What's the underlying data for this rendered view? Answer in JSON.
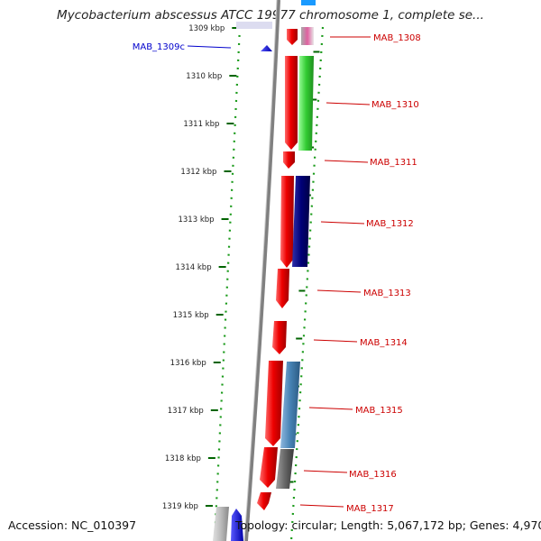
{
  "title": "Mycobacterium abscessus ATCC 19977 chromosome 1, complete se...",
  "footer": {
    "accession": "Accession: NC_010397",
    "topology": "Topology: circular; Length: 5,067,172 bp; Genes: 4,970"
  },
  "colors": {
    "backbone": "#808080",
    "forward_gene": "#e80000",
    "reverse_label": "#0000cc",
    "label_line": "#cc0000",
    "tick": "#006400",
    "dot_ring": "#1a9a1a"
  },
  "ticks": [
    {
      "label": "1309 kbp"
    },
    {
      "label": "1310 kbp"
    },
    {
      "label": "1311 kbp"
    },
    {
      "label": "1312 kbp"
    },
    {
      "label": "1313 kbp"
    },
    {
      "label": "1314 kbp"
    },
    {
      "label": "1315 kbp"
    },
    {
      "label": "1316 kbp"
    },
    {
      "label": "1317 kbp"
    },
    {
      "label": "1318 kbp"
    },
    {
      "label": "1319 kbp"
    }
  ],
  "genes": [
    {
      "name": "MAB_1308",
      "strand": "+",
      "color": "#e80000"
    },
    {
      "name": "MAB_1309c",
      "strand": "-",
      "color": "#0000ee"
    },
    {
      "name": "MAB_1310",
      "strand": "+",
      "color": "#e80000"
    },
    {
      "name": "MAB_1311",
      "strand": "+",
      "color": "#e80000"
    },
    {
      "name": "MAB_1312",
      "strand": "+",
      "color": "#e80000"
    },
    {
      "name": "MAB_1313",
      "strand": "+",
      "color": "#e80000"
    },
    {
      "name": "MAB_1314",
      "strand": "+",
      "color": "#e80000"
    },
    {
      "name": "MAB_1315",
      "strand": "+",
      "color": "#e80000"
    },
    {
      "name": "MAB_1316",
      "strand": "+",
      "color": "#e80000"
    },
    {
      "name": "MAB_1317",
      "strand": "+",
      "color": "#e80000"
    }
  ],
  "features": [
    {
      "name": "MAB_1308",
      "color": "#e060a0"
    },
    {
      "name": "MAB_1310",
      "color": "#33cc33"
    },
    {
      "name": "MAB_1312",
      "color": "#000077"
    },
    {
      "name": "MAB_1315",
      "color": "#4682b4"
    },
    {
      "name": "MAB_1316",
      "color": "#666666"
    }
  ]
}
